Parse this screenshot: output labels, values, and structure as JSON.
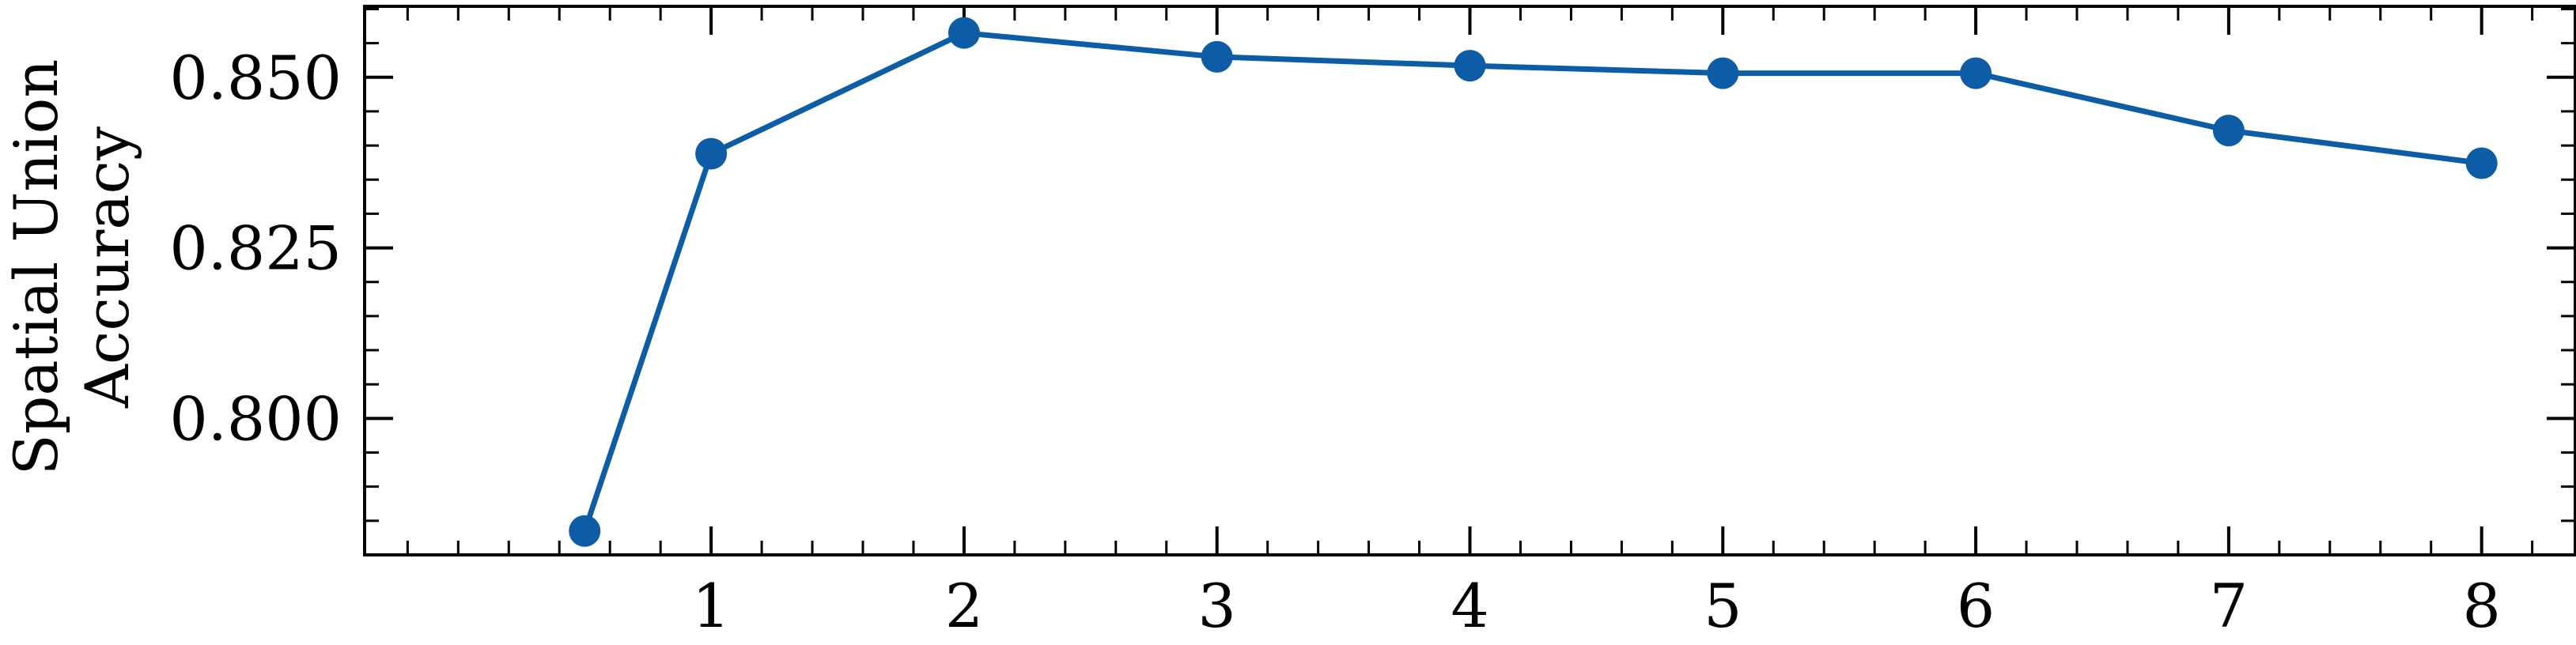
{
  "chart_data": {
    "type": "line",
    "title": "",
    "xlabel": "",
    "ylabel_lines": [
      "Spatial Union",
      "Accuracy"
    ],
    "x": [
      0.5,
      1,
      2,
      3,
      4,
      5,
      6,
      7,
      8
    ],
    "series": [
      {
        "values": [
          0.7835,
          0.8388,
          0.8565,
          0.853,
          0.8517,
          0.8506,
          0.8506,
          0.8422,
          0.8374
        ],
        "color": "#0C5DA5"
      }
    ],
    "xlim": [
      -0.37,
      8.37
    ],
    "ylim": [
      0.78,
      0.8604
    ],
    "xticks": [
      1,
      2,
      3,
      4,
      5,
      6,
      7,
      8
    ],
    "yticks": [
      0.8,
      0.825,
      0.85
    ],
    "ytick_labels": [
      "0.800",
      "0.825",
      "0.850"
    ],
    "x_minor_step": 0.2,
    "y_minor_step": 0.005,
    "grid": false,
    "legend": "none",
    "marker": "circle"
  }
}
